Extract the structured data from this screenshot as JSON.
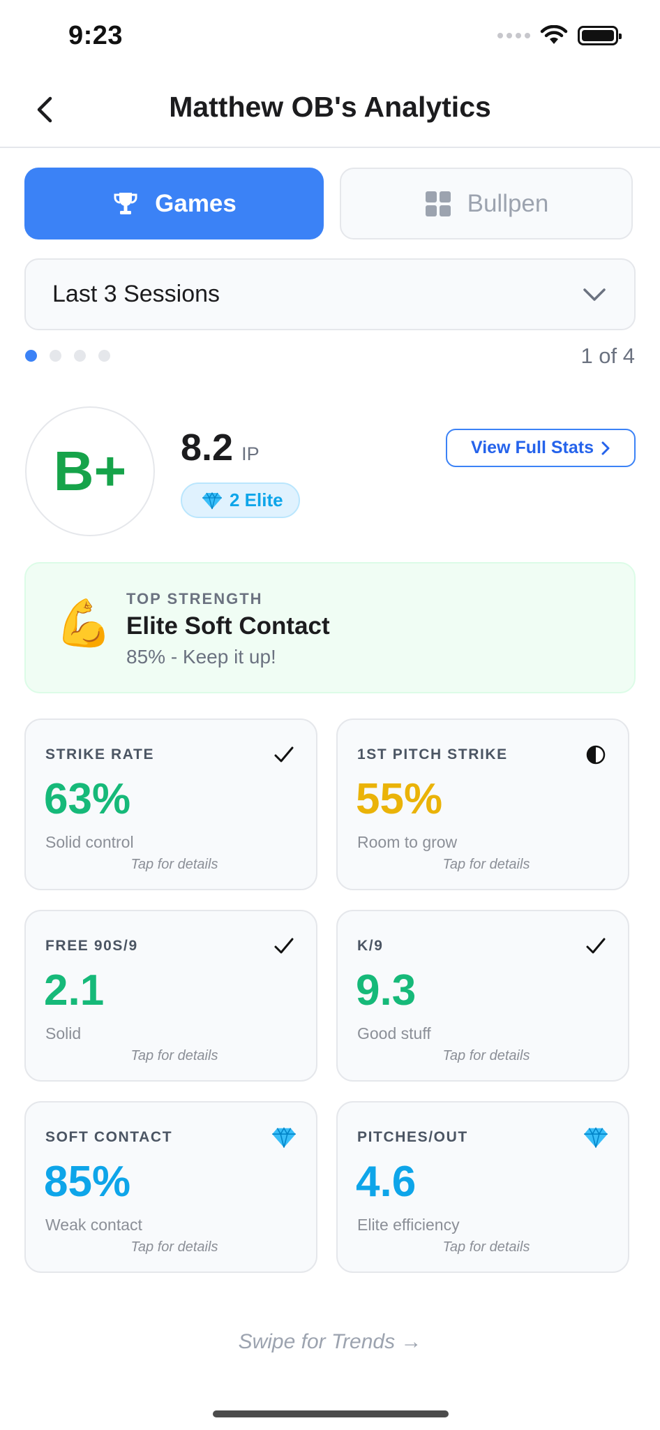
{
  "status_bar": {
    "time": "9:23"
  },
  "header": {
    "title": "Matthew OB's Analytics"
  },
  "tabs": [
    {
      "label": "Games",
      "icon": "trophy-icon",
      "active": true
    },
    {
      "label": "Bullpen",
      "icon": "grid-icon",
      "active": false
    }
  ],
  "filter": {
    "selected": "Last 3 Sessions"
  },
  "pager": {
    "count_text": "1 of 4",
    "total": 4,
    "current": 1
  },
  "summary": {
    "grade": "B+",
    "ip_value": "8.2",
    "ip_unit": "IP",
    "elite_badge": "2 Elite",
    "view_stats_label": "View Full Stats"
  },
  "top_strength": {
    "emoji": "💪",
    "kicker": "TOP STRENGTH",
    "title": "Elite Soft Contact",
    "subtitle": "85% - Keep it up!"
  },
  "metrics": [
    {
      "label": "STRIKE RATE",
      "value": "63%",
      "note": "Solid control",
      "hint": "Tap for details",
      "status_icon": "checkmark-icon",
      "color": "#16b979"
    },
    {
      "label": "1ST PITCH STRIKE",
      "value": "55%",
      "note": "Room to grow",
      "hint": "Tap for details",
      "status_icon": "half-circle-icon",
      "color": "#eab308"
    },
    {
      "label": "FREE 90S/9",
      "value": "2.1",
      "note": "Solid",
      "hint": "Tap for details",
      "status_icon": "checkmark-icon",
      "color": "#16b979"
    },
    {
      "label": "K/9",
      "value": "9.3",
      "note": "Good stuff",
      "hint": "Tap for details",
      "status_icon": "checkmark-icon",
      "color": "#16b979"
    },
    {
      "label": "SOFT CONTACT",
      "value": "85%",
      "note": "Weak contact",
      "hint": "Tap for details",
      "status_icon": "diamond-icon",
      "color": "#0ea5e9"
    },
    {
      "label": "PITCHES/OUT",
      "value": "4.6",
      "note": "Elite efficiency",
      "hint": "Tap for details",
      "status_icon": "diamond-icon",
      "color": "#0ea5e9"
    }
  ],
  "footer": {
    "swipe_hint": "Swipe for Trends →"
  }
}
